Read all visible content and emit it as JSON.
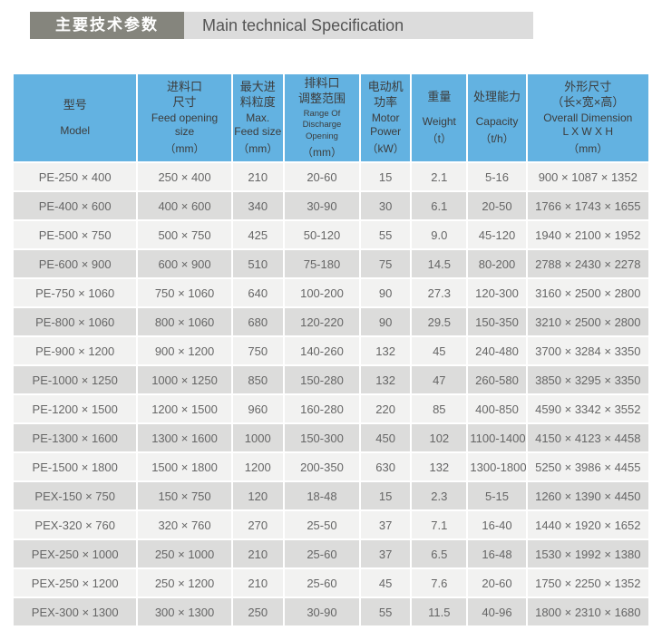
{
  "title": {
    "cn": "主要技术参数",
    "en": "Main technical Specification"
  },
  "colors": {
    "title_dark_bg": "#85857d",
    "title_light_bg": "#dcdcdc",
    "header_blue": "#63b2e1",
    "row_light": "#f2f2f1",
    "row_dark": "#dcdcdb",
    "body_text": "#666666"
  },
  "table": {
    "col_keys": [
      "model",
      "feed_opening_size",
      "max_feed_size",
      "discharge_range",
      "motor_power",
      "weight",
      "capacity",
      "overall_dimension"
    ],
    "cols": [
      {
        "cn": "型号",
        "en": "Model",
        "unit": ""
      },
      {
        "cn": "进料口\n尺寸",
        "en": "Feed opening\nsize",
        "unit": "（mm）"
      },
      {
        "cn": "最大进\n料粒度",
        "en": "Max.\nFeed size",
        "unit": "（mm）"
      },
      {
        "cn": "排料口\n调整范围",
        "en": "Range Of\nDischarge Opening",
        "unit": "（mm）"
      },
      {
        "cn": "电动机\n功率",
        "en": "Motor\nPower",
        "unit": "（kW）"
      },
      {
        "cn": "重量",
        "en": "Weight",
        "unit": "（t）"
      },
      {
        "cn": "处理能力",
        "en": "Capacity",
        "unit": "（t/h）"
      },
      {
        "cn": "外形尺寸\n（长×宽×高）",
        "en": "Overall Dimension\nL X W X H",
        "unit": "（mm）"
      }
    ],
    "rows": [
      [
        "PE-250 × 400",
        "250 × 400",
        "210",
        "20-60",
        "15",
        "2.1",
        "5-16",
        "900 × 1087 × 1352"
      ],
      [
        "PE-400 × 600",
        "400 × 600",
        "340",
        "30-90",
        "30",
        "6.1",
        "20-50",
        "1766 × 1743 × 1655"
      ],
      [
        "PE-500 × 750",
        "500 × 750",
        "425",
        "50-120",
        "55",
        "9.0",
        "45-120",
        "1940 × 2100 × 1952"
      ],
      [
        "PE-600 × 900",
        "600 × 900",
        "510",
        "75-180",
        "75",
        "14.5",
        "80-200",
        "2788 × 2430 × 2278"
      ],
      [
        "PE-750 × 1060",
        "750 × 1060",
        "640",
        "100-200",
        "90",
        "27.3",
        "120-300",
        "3160 × 2500 × 2800"
      ],
      [
        "PE-800 × 1060",
        "800 × 1060",
        "680",
        "120-220",
        "90",
        "29.5",
        "150-350",
        "3210 × 2500 × 2800"
      ],
      [
        "PE-900 × 1200",
        "900 × 1200",
        "750",
        "140-260",
        "132",
        "45",
        "240-480",
        "3700 × 3284 × 3350"
      ],
      [
        "PE-1000 × 1250",
        "1000 × 1250",
        "850",
        "150-280",
        "132",
        "47",
        "260-580",
        "3850 × 3295 × 3350"
      ],
      [
        "PE-1200 × 1500",
        "1200 × 1500",
        "960",
        "160-280",
        "220",
        "85",
        "400-850",
        "4590 × 3342 × 3552"
      ],
      [
        "PE-1300 × 1600",
        "1300 × 1600",
        "1000",
        "150-300",
        "450",
        "102",
        "1100-1400",
        "4150 × 4123 × 4458"
      ],
      [
        "PE-1500 × 1800",
        "1500 × 1800",
        "1200",
        "200-350",
        "630",
        "132",
        "1300-1800",
        "5250 × 3986 × 4455"
      ],
      [
        "PEX-150 × 750",
        "150 × 750",
        "120",
        "18-48",
        "15",
        "2.3",
        "5-15",
        "1260 × 1390 × 4450"
      ],
      [
        "PEX-320 × 760",
        "320 × 760",
        "270",
        "25-50",
        "37",
        "7.1",
        "16-40",
        "1440 × 1920 × 1652"
      ],
      [
        "PEX-250 × 1000",
        "250 × 1000",
        "210",
        "25-60",
        "37",
        "6.5",
        "16-48",
        "1530 × 1992 × 1380"
      ],
      [
        "PEX-250 × 1200",
        "250 × 1200",
        "210",
        "25-60",
        "45",
        "7.6",
        "20-60",
        "1750 × 2250 × 1352"
      ],
      [
        "PEX-300 × 1300",
        "300 × 1300",
        "250",
        "30-90",
        "55",
        "11.5",
        "40-96",
        "1800 × 2310 × 1680"
      ]
    ]
  }
}
